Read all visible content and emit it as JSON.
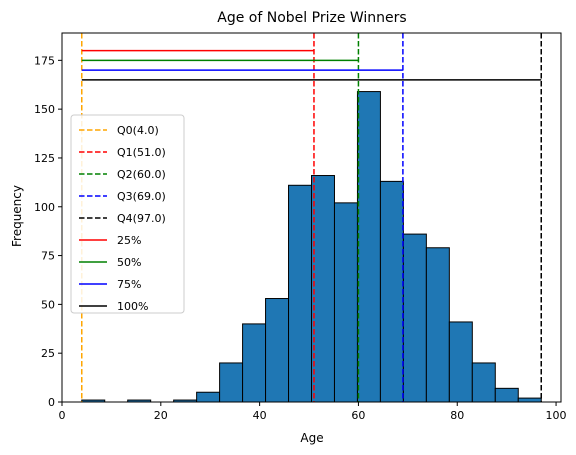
{
  "chart_data": {
    "type": "bar",
    "title": "Age of Nobel Prize Winners",
    "xlabel": "Age",
    "ylabel": "Frequency",
    "xlim": [
      0,
      101
    ],
    "ylim": [
      0,
      189
    ],
    "xticks": [
      0,
      20,
      40,
      60,
      80,
      100
    ],
    "yticks": [
      0,
      25,
      50,
      75,
      100,
      125,
      150,
      175
    ],
    "bar_color": "#1f77b4",
    "bins": [
      {
        "x0": 4.0,
        "x1": 8.65,
        "count": 1
      },
      {
        "x0": 8.65,
        "x1": 13.3,
        "count": 0
      },
      {
        "x0": 13.3,
        "x1": 17.95,
        "count": 1
      },
      {
        "x0": 17.95,
        "x1": 22.6,
        "count": 0
      },
      {
        "x0": 22.6,
        "x1": 27.25,
        "count": 1
      },
      {
        "x0": 27.25,
        "x1": 31.9,
        "count": 5
      },
      {
        "x0": 31.9,
        "x1": 36.55,
        "count": 20
      },
      {
        "x0": 36.55,
        "x1": 41.2,
        "count": 40
      },
      {
        "x0": 41.2,
        "x1": 45.85,
        "count": 53
      },
      {
        "x0": 45.85,
        "x1": 50.5,
        "count": 111
      },
      {
        "x0": 50.5,
        "x1": 55.15,
        "count": 116
      },
      {
        "x0": 55.15,
        "x1": 59.8,
        "count": 102
      },
      {
        "x0": 59.8,
        "x1": 64.45,
        "count": 159
      },
      {
        "x0": 64.45,
        "x1": 69.1,
        "count": 113
      },
      {
        "x0": 69.1,
        "x1": 73.75,
        "count": 86
      },
      {
        "x0": 73.75,
        "x1": 78.4,
        "count": 79
      },
      {
        "x0": 78.4,
        "x1": 83.05,
        "count": 41
      },
      {
        "x0": 83.05,
        "x1": 87.7,
        "count": 20
      },
      {
        "x0": 87.7,
        "x1": 92.35,
        "count": 7
      },
      {
        "x0": 92.35,
        "x1": 97.0,
        "count": 2
      }
    ],
    "quantile_lines": [
      {
        "label": "Q0(4.0)",
        "x": 4.0,
        "color": "#ffa500"
      },
      {
        "label": "Q1(51.0)",
        "x": 51.0,
        "color": "#ff0000"
      },
      {
        "label": "Q2(60.0)",
        "x": 60.0,
        "color": "#008000"
      },
      {
        "label": "Q3(69.0)",
        "x": 69.0,
        "color": "#0000ff"
      },
      {
        "label": "Q4(97.0)",
        "x": 97.0,
        "color": "#000000"
      }
    ],
    "percent_lines": [
      {
        "label": "25%",
        "y": 180,
        "x0": 4.0,
        "x1": 51.0,
        "color": "#ff0000"
      },
      {
        "label": "50%",
        "y": 175,
        "x0": 4.0,
        "x1": 60.0,
        "color": "#008000"
      },
      {
        "label": "75%",
        "y": 170,
        "x0": 4.0,
        "x1": 69.0,
        "color": "#0000ff"
      },
      {
        "label": "100%",
        "y": 165,
        "x0": 4.0,
        "x1": 97.0,
        "color": "#000000"
      }
    ],
    "legend": {
      "placement": "center-left",
      "entries": [
        "Q0(4.0)",
        "Q1(51.0)",
        "Q2(60.0)",
        "Q3(69.0)",
        "Q4(97.0)",
        "25%",
        "50%",
        "75%",
        "100%"
      ]
    },
    "grid": false
  }
}
